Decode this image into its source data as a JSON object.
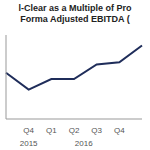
{
  "chart_data": {
    "type": "line",
    "title": "l-Clear as a Multiple of Pro Forma Adjusted EBITDA (",
    "categories": [
      null,
      "Q4",
      "Q1",
      "Q2",
      "Q3",
      "Q4",
      null
    ],
    "values": [
      3.1,
      2.7,
      2.95,
      2.95,
      3.3,
      3.35,
      3.75
    ],
    "color": "#1f2d5a",
    "ylim": [
      2,
      4
    ],
    "yticks": [],
    "grid": false,
    "tick_labels": "x",
    "annotations": [
      {
        "text": "2015",
        "x": 1
      },
      {
        "text": "2016",
        "x": 3.5
      }
    ]
  }
}
